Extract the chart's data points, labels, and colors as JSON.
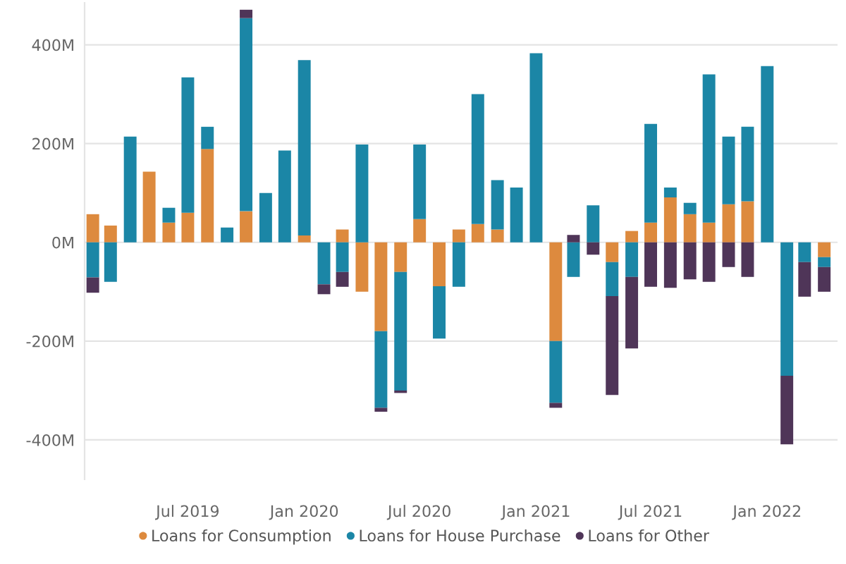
{
  "chart_data": {
    "type": "bar",
    "stacked": true,
    "x": [
      "2019-02",
      "2019-03",
      "2019-04",
      "2019-05",
      "2019-06",
      "2019-07",
      "2019-08",
      "2019-09",
      "2019-10",
      "2019-11",
      "2019-12",
      "2020-01",
      "2020-02",
      "2020-03",
      "2020-04",
      "2020-05",
      "2020-06",
      "2020-07",
      "2020-08",
      "2020-09",
      "2020-10",
      "2020-11",
      "2020-12",
      "2021-01",
      "2021-02",
      "2021-03",
      "2021-04",
      "2021-05",
      "2021-06",
      "2021-07",
      "2021-08",
      "2021-09",
      "2021-10",
      "2021-11",
      "2021-12",
      "2022-01",
      "2022-02",
      "2022-03",
      "2022-04"
    ],
    "series": [
      {
        "name": "Loans for Consumption",
        "color": "#dd8a3e",
        "values": [
          57,
          34,
          null,
          143,
          40,
          60,
          189,
          null,
          63,
          null,
          null,
          14,
          null,
          26,
          -100,
          -180,
          -60,
          47,
          -89,
          26,
          37,
          26,
          null,
          null,
          -200,
          null,
          null,
          -40,
          23,
          40,
          91,
          57,
          40,
          77,
          83,
          null,
          null,
          null,
          -30
        ]
      },
      {
        "name": "Loans for House Purchase",
        "color": "#1b86a6",
        "values": [
          -71,
          -80,
          214,
          null,
          30,
          274,
          45,
          30,
          391,
          100,
          186,
          355,
          -85,
          -60,
          198,
          -155,
          -240,
          151,
          -106,
          -90,
          263,
          100,
          111,
          383,
          -125,
          -70,
          75,
          -69,
          -70,
          200,
          20,
          23,
          300,
          137,
          151,
          357,
          -270,
          -40,
          -20
        ]
      },
      {
        "name": "Loans for Other",
        "color": "#4f3558",
        "values": [
          -31,
          null,
          null,
          null,
          null,
          null,
          null,
          null,
          17,
          null,
          null,
          null,
          -20,
          -30,
          null,
          -8,
          -5,
          null,
          null,
          null,
          null,
          null,
          null,
          null,
          -10,
          15,
          -25,
          -200,
          -145,
          -90,
          -92,
          -75,
          -80,
          -50,
          -70,
          null,
          -139,
          -70,
          -50
        ]
      }
    ],
    "ylim": [
      -480,
      485
    ],
    "yticks": [
      {
        "value": -400,
        "label": "-400M"
      },
      {
        "value": -200,
        "label": "-200M"
      },
      {
        "value": 0,
        "label": "0M"
      },
      {
        "value": 200,
        "label": "200M"
      },
      {
        "value": 400,
        "label": "400M"
      }
    ],
    "xlim": [
      "2019-01-19",
      "2022-04-22"
    ],
    "xticks": [
      {
        "value": "2019-07",
        "label": "Jul 2019"
      },
      {
        "value": "2020-01",
        "label": "Jan 2020"
      },
      {
        "value": "2020-07",
        "label": "Jul 2020"
      },
      {
        "value": "2021-01",
        "label": "Jan 2021"
      },
      {
        "value": "2021-07",
        "label": "Jul 2021"
      },
      {
        "value": "2022-01",
        "label": "Jan 2022"
      }
    ],
    "grid": "y",
    "legend": "bottom"
  }
}
